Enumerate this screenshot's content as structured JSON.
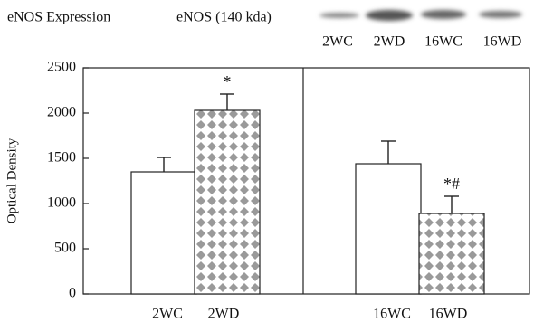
{
  "chart_data": {
    "type": "bar",
    "title": "eNOS Expression",
    "blot": {
      "label": "eNOS (140 kda)",
      "lanes": [
        "2WC",
        "2WD",
        "16WC",
        "16WD"
      ]
    },
    "ylabel": "Optical Density",
    "categories": [
      "2WC",
      "2WD",
      "16WC",
      "16WD"
    ],
    "values": [
      1350,
      2030,
      1440,
      890
    ],
    "errors": [
      160,
      180,
      250,
      190
    ],
    "colors": [
      "#ffffff",
      "#9a9a9a",
      "#ffffff",
      "#9a9a9a"
    ],
    "annotations": {
      "2WD": "*",
      "16WD": "*#"
    },
    "ylim": [
      0,
      2500
    ],
    "yticks": [
      0,
      500,
      1000,
      1500,
      2000,
      2500
    ]
  }
}
